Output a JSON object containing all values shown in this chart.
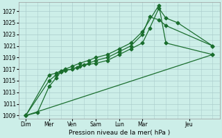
{
  "background_color": "#cceee8",
  "grid_color": "#aacccc",
  "line_color": "#1a6e2e",
  "title": "Pression niveau de la mer( hPa )",
  "ylabel_vals": [
    1009,
    1011,
    1013,
    1015,
    1017,
    1019,
    1021,
    1023,
    1025,
    1027
  ],
  "ylim": [
    1008.5,
    1028.5
  ],
  "xlim": [
    -0.3,
    8.3
  ],
  "x_tick_positions": [
    0,
    1,
    2,
    3,
    4,
    5,
    7
  ],
  "x_labels": [
    "Dim",
    "Mer",
    "Ven",
    "Sam",
    "Lun",
    "Mar",
    "Jeu"
  ],
  "series1_x": [
    0,
    0.5,
    1,
    1.3,
    1.5,
    1.7,
    2,
    2.2,
    2.5,
    3,
    3.5,
    4,
    4.5,
    5,
    5.3,
    5.7,
    6,
    6.5,
    8
  ],
  "series1_y": [
    1009,
    1009.5,
    1014,
    1015.5,
    1016.5,
    1016.8,
    1017,
    1017.3,
    1017.7,
    1018,
    1018.5,
    1019.5,
    1020.5,
    1021.5,
    1024,
    1027.5,
    1025.8,
    1025,
    1021
  ],
  "series2_x": [
    0,
    1,
    1.3,
    1.5,
    1.7,
    2,
    2.3,
    2.7,
    3,
    3.5,
    4,
    4.5,
    5,
    5.3,
    5.7,
    6,
    8
  ],
  "series2_y": [
    1009,
    1015,
    1016,
    1016.5,
    1016.8,
    1017,
    1017.5,
    1018,
    1018.5,
    1019,
    1020,
    1021,
    1023,
    1026,
    1025.5,
    1024.5,
    1021
  ],
  "series3_x": [
    0,
    1,
    1.3,
    1.5,
    1.7,
    2,
    2.3,
    2.7,
    3,
    3.5,
    4,
    4.5,
    5,
    5.7,
    6,
    8
  ],
  "series3_y": [
    1009,
    1016,
    1016.3,
    1016.7,
    1017,
    1017.5,
    1018,
    1018.5,
    1019,
    1019.5,
    1020.5,
    1021.5,
    1023.5,
    1028,
    1021.5,
    1019.5
  ],
  "series4_x": [
    0,
    8
  ],
  "series4_y": [
    1009,
    1019.5
  ],
  "marker_size": 2.5,
  "linewidth": 0.9,
  "tick_fontsize": 5.5,
  "xlabel_fontsize": 6.5
}
